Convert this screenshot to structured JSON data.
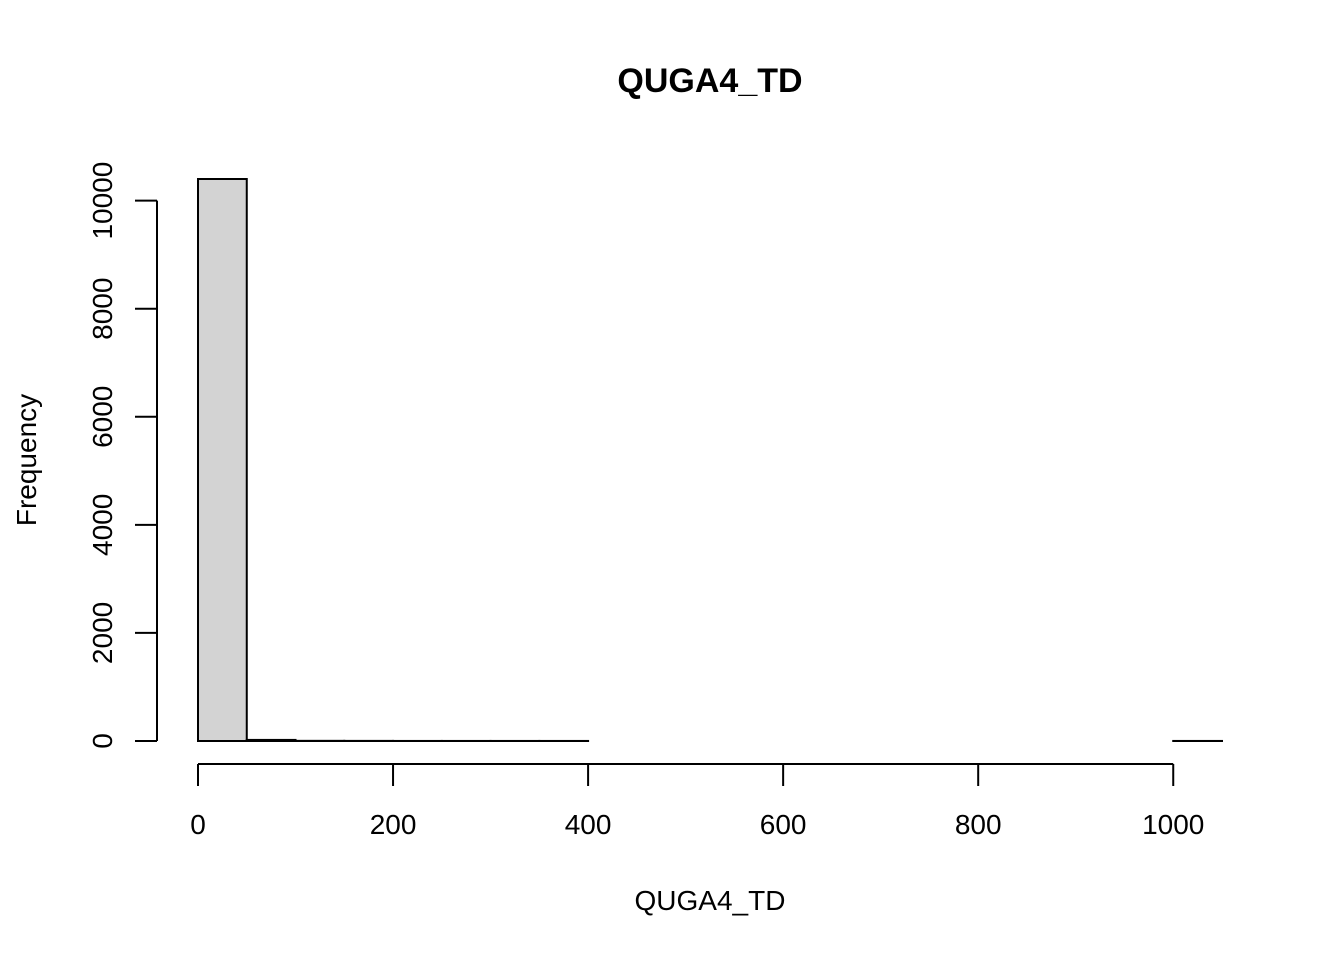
{
  "chart_data": {
    "type": "bar",
    "title": "QUGA4_TD",
    "xlabel": "QUGA4_TD",
    "ylabel": "Frequency",
    "bins": [
      {
        "from": 0,
        "to": 50,
        "count": 10400
      },
      {
        "from": 50,
        "to": 100,
        "count": 20
      },
      {
        "from": 100,
        "to": 150,
        "count": 3
      },
      {
        "from": 150,
        "to": 200,
        "count": 2
      },
      {
        "from": 200,
        "to": 250,
        "count": 1
      },
      {
        "from": 250,
        "to": 300,
        "count": 1
      },
      {
        "from": 300,
        "to": 350,
        "count": 1
      },
      {
        "from": 350,
        "to": 400,
        "count": 1
      },
      {
        "from": 400,
        "to": 450,
        "count": 0
      },
      {
        "from": 450,
        "to": 500,
        "count": 0
      },
      {
        "from": 500,
        "to": 550,
        "count": 0
      },
      {
        "from": 550,
        "to": 600,
        "count": 0
      },
      {
        "from": 600,
        "to": 650,
        "count": 0
      },
      {
        "from": 650,
        "to": 700,
        "count": 0
      },
      {
        "from": 700,
        "to": 750,
        "count": 0
      },
      {
        "from": 750,
        "to": 800,
        "count": 0
      },
      {
        "from": 800,
        "to": 850,
        "count": 0
      },
      {
        "from": 850,
        "to": 900,
        "count": 0
      },
      {
        "from": 900,
        "to": 950,
        "count": 0
      },
      {
        "from": 950,
        "to": 1000,
        "count": 0
      },
      {
        "from": 1000,
        "to": 1050,
        "count": 1
      }
    ],
    "xlim": [
      0,
      1050
    ],
    "ylim": [
      0,
      10400
    ],
    "xticks": [
      0,
      200,
      400,
      600,
      800,
      1000
    ],
    "yticks": [
      0,
      2000,
      4000,
      6000,
      8000,
      10000
    ],
    "xtick_labels": [
      "0",
      "200",
      "400",
      "600",
      "800",
      "1000"
    ],
    "ytick_labels": [
      "0",
      "2000",
      "4000",
      "6000",
      "8000",
      "10000"
    ],
    "grid": false,
    "bar_fill": "#d3d3d3",
    "bar_stroke": "#000000"
  }
}
